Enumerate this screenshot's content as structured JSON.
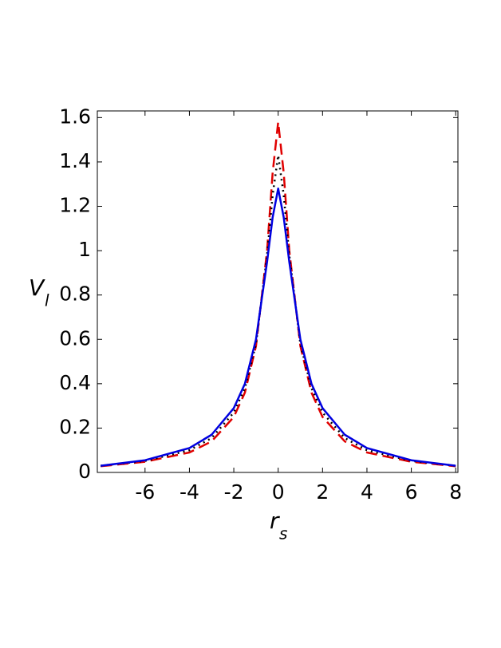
{
  "chart_data": {
    "type": "line",
    "x_label": {
      "main": "r",
      "sub": "s"
    },
    "y_label": {
      "main": "V",
      "sub": "l"
    },
    "x": [
      -8,
      -6,
      -4,
      -3,
      -2,
      -1.5,
      -1,
      -0.5,
      -0.25,
      0,
      0.25,
      0.5,
      1,
      1.5,
      2,
      3,
      4,
      6,
      8
    ],
    "series": [
      {
        "color": "#e00000",
        "dash": "dashed",
        "values": [
          0.028,
          0.048,
          0.09,
          0.14,
          0.25,
          0.36,
          0.57,
          1.0,
          1.35,
          1.58,
          1.35,
          1.0,
          0.57,
          0.36,
          0.25,
          0.14,
          0.09,
          0.048,
          0.028
        ]
      },
      {
        "color": "#000000",
        "dash": "dotted",
        "values": [
          0.03,
          0.052,
          0.1,
          0.155,
          0.27,
          0.38,
          0.58,
          0.98,
          1.25,
          1.43,
          1.25,
          0.98,
          0.58,
          0.38,
          0.27,
          0.155,
          0.1,
          0.052,
          0.03
        ]
      },
      {
        "color": "#0000e0",
        "dash": "solid",
        "values": [
          0.03,
          0.055,
          0.11,
          0.17,
          0.29,
          0.4,
          0.6,
          0.95,
          1.15,
          1.28,
          1.15,
          0.95,
          0.6,
          0.4,
          0.29,
          0.17,
          0.11,
          0.055,
          0.03
        ]
      }
    ],
    "xlim": [
      -8.15,
      8.1
    ],
    "ylim": [
      0,
      1.63
    ],
    "xticks": [
      -6,
      -4,
      -2,
      0,
      2,
      4,
      6,
      8
    ],
    "yticks": [
      0,
      0.2,
      0.4,
      0.6,
      0.8,
      1,
      1.2,
      1.4,
      1.6
    ]
  }
}
